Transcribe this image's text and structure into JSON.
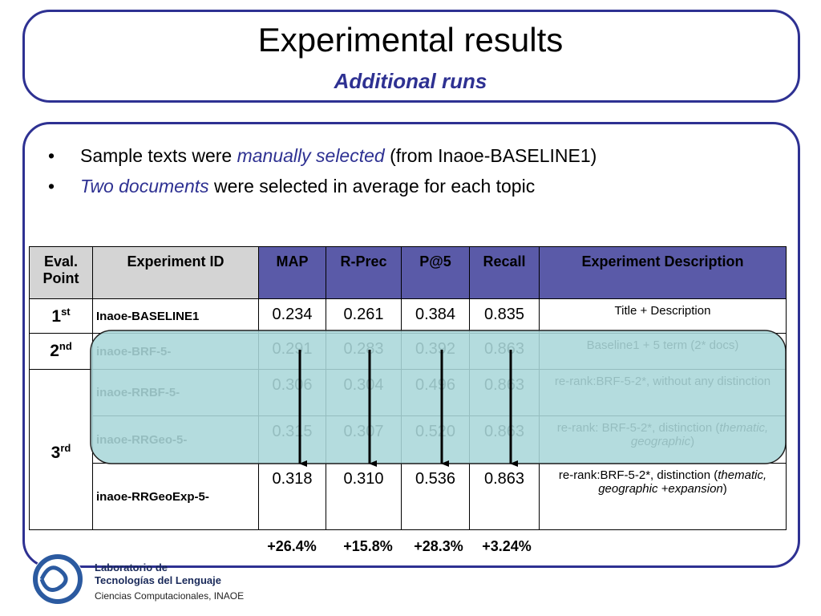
{
  "header": {
    "title": "Experimental results",
    "subtitle": "Additional runs"
  },
  "bullets": [
    {
      "pre": "Sample texts were ",
      "em": "manually selected",
      "post": " (from Inaoe-BASELINE1)"
    },
    {
      "em": "Two documents",
      "post": " were selected in average for each topic"
    }
  ],
  "table": {
    "headers": [
      "Eval. Point",
      "Experiment ID",
      "MAP",
      "R-Prec",
      "P@5",
      "Recall",
      "Experiment Description"
    ],
    "rows": [
      {
        "point": {
          "n": "1",
          "sup": "st"
        },
        "id": "Inaoe-BASELINE1",
        "values": [
          "0.234",
          "0.261",
          "0.384",
          "0.835"
        ],
        "description": {
          "pre": "Title + Description"
        }
      },
      {
        "point": {
          "n": "2",
          "sup": "nd"
        },
        "id": "inaoe-BRF-5-",
        "values": [
          "0.291",
          "0.283",
          "0.392",
          "0.863"
        ],
        "description": {
          "pre": "Baseline1 + 5 term (2* docs)"
        }
      },
      {
        "point": {
          "n": "3",
          "sup": "rd"
        },
        "id": "inaoe-RRBF-5-",
        "values": [
          "0.306",
          "0.304",
          "0.496",
          "0.863"
        ],
        "description": {
          "pre": "re-rank:BRF-5-2*,  without any distinction"
        }
      },
      {
        "id": "inaoe-RRGeo-5-",
        "values": [
          "0.315",
          "0.307",
          "0.520",
          "0.863"
        ],
        "description": {
          "pre": "re-rank: BRF-5-2*, distinction (",
          "em": "thematic, geographic",
          "post": ")"
        }
      },
      {
        "id": "inaoe-RRGeoExp-5-",
        "values": [
          "0.318",
          "0.310",
          "0.536",
          "0.863"
        ],
        "description": {
          "pre": "re-rank:BRF-5-2*, distinction (",
          "em": "thematic, geographic +expansion",
          "post": ")"
        }
      }
    ],
    "improvements": [
      "+26.4%",
      "+15.8%",
      "+28.3%",
      "+3.24%"
    ]
  },
  "logo": {
    "line1": "Laboratorio de",
    "line2": "Tecnologías del Lenguaje",
    "line3": "Ciencias Computacionales, INAOE"
  }
}
